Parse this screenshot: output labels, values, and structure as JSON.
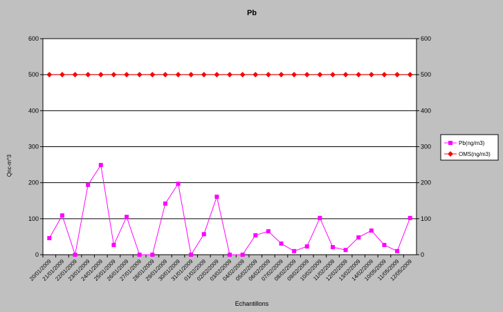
{
  "chart_data": {
    "type": "line",
    "title": "Pb",
    "x_label": "Echantillons",
    "y_label": "Qnc-m^3",
    "categories": [
      "20/01/2009",
      "21/01/2009",
      "22/01/2009",
      "23/01/2009",
      "24/01/2009",
      "25/01/2009",
      "26/01/2009",
      "27/01/2009",
      "28/01/2009",
      "29/01/2009",
      "30/01/2009",
      "31/01/2009",
      "01/02/2009",
      "02/02/2009",
      "03/02/2009",
      "04/02/2009",
      "05/02/2009",
      "06/02/2009",
      "07/02/2009",
      "08/02/2009",
      "09/02/2009",
      "10/02/2009",
      "11/02/2009",
      "12/02/2009",
      "13/02/2009",
      "14/02/2009",
      "10/05/2009",
      "11/05/2009",
      "12/05/2009"
    ],
    "series": [
      {
        "name": "Pb(ng/m3)",
        "color": "#ff00ff",
        "marker": "square",
        "values": [
          46,
          109,
          0,
          194,
          249,
          27,
          105,
          0,
          0,
          142,
          197,
          0,
          57,
          161,
          0,
          0,
          54,
          65,
          31,
          10,
          23,
          102,
          21,
          13,
          48,
          67,
          27,
          10,
          102
        ]
      },
      {
        "name": "OMS(ng/m3)",
        "color": "#ff0000",
        "marker": "diamond",
        "values": [
          500,
          500,
          500,
          500,
          500,
          500,
          500,
          500,
          500,
          500,
          500,
          500,
          500,
          500,
          500,
          500,
          500,
          500,
          500,
          500,
          500,
          500,
          500,
          500,
          500,
          500,
          500,
          500,
          500
        ]
      }
    ],
    "ylim": [
      0,
      600
    ],
    "yticks": [
      0,
      100,
      200,
      300,
      400,
      500,
      600
    ],
    "y2lim": [
      0,
      600
    ],
    "y2ticks": [
      0,
      100,
      200,
      300,
      400,
      500,
      600
    ],
    "grid": true,
    "legend": "right"
  }
}
